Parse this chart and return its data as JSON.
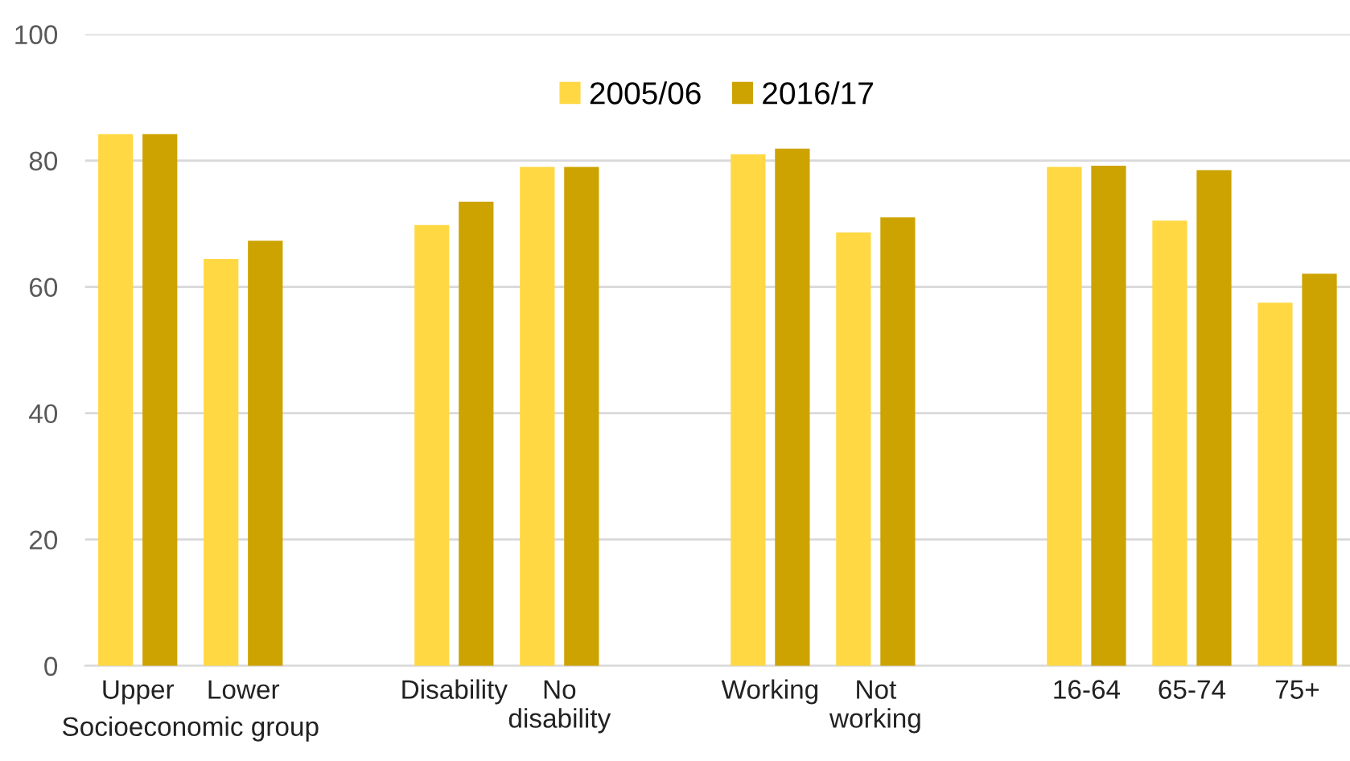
{
  "chart_data": {
    "type": "bar",
    "categories": [
      "Upper",
      "Lower",
      null,
      "Disability",
      "No\ndisability",
      null,
      "Working",
      "Not\nworking",
      null,
      "16-64",
      "65-74",
      "75+"
    ],
    "series": [
      {
        "name": "2005/06",
        "color": "#ffd843",
        "values": [
          84.2,
          64.4,
          null,
          69.8,
          79.0,
          null,
          81.0,
          68.6,
          null,
          79.0,
          70.5,
          57.5
        ]
      },
      {
        "name": "2016/17",
        "color": "#cca300",
        "values": [
          84.2,
          67.3,
          null,
          73.5,
          79.0,
          null,
          81.9,
          71.0,
          null,
          79.2,
          78.5,
          62.1
        ]
      }
    ],
    "ylim": [
      0,
      100
    ],
    "yticks": [
      0,
      20,
      40,
      60,
      80,
      100
    ],
    "grid": "y",
    "legend": "top",
    "annotations": [
      "Socioeconomic group"
    ]
  }
}
